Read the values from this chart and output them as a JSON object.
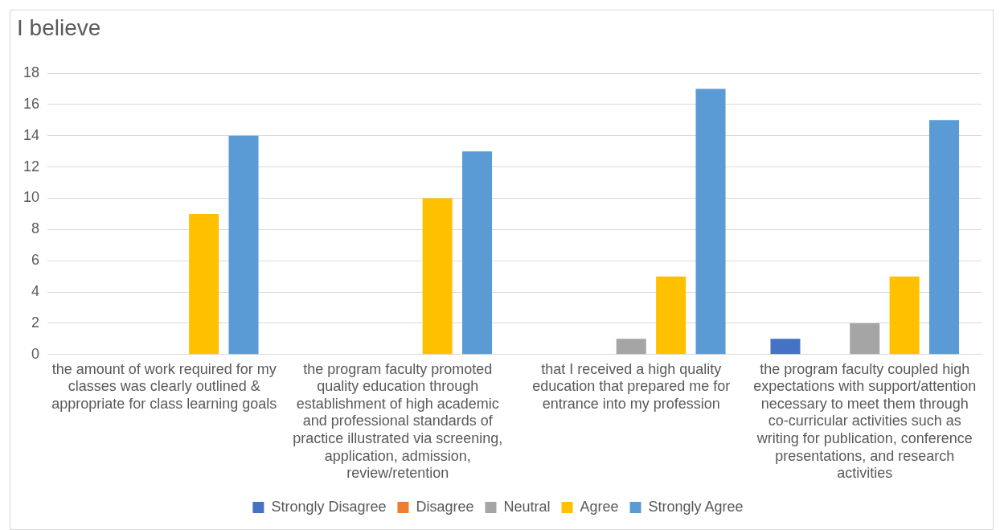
{
  "chart_data": {
    "type": "bar",
    "title": "I believe",
    "categories": [
      "the amount of work required for my classes was clearly outlined & appropriate for class learning goals",
      "the program faculty promoted quality education through establishment of high academic and professional standards of practice illustrated via screening, application, admission, review/retention",
      "that I received a high quality education that prepared me for entrance into my profession",
      "the program faculty coupled high expectations with support/attention necessary to meet them through co-curricular activities such as writing for publication, conference presentations, and research activities"
    ],
    "series": [
      {
        "name": "Strongly Disagree",
        "color": "#4472c4",
        "values": [
          0,
          0,
          0,
          1
        ]
      },
      {
        "name": "Disagree",
        "color": "#ed7d31",
        "values": [
          0,
          0,
          0,
          0
        ]
      },
      {
        "name": "Neutral",
        "color": "#a5a5a5",
        "values": [
          0,
          0,
          1,
          2
        ]
      },
      {
        "name": "Agree",
        "color": "#ffc000",
        "values": [
          9,
          10,
          5,
          5
        ]
      },
      {
        "name": "Strongly Agree",
        "color": "#5b9bd5",
        "values": [
          14,
          13,
          17,
          15
        ]
      }
    ],
    "ylim": [
      0,
      18
    ],
    "yticks": [
      0,
      2,
      4,
      6,
      8,
      10,
      12,
      14,
      16,
      18
    ],
    "grid": "y",
    "legend": "bottom"
  }
}
